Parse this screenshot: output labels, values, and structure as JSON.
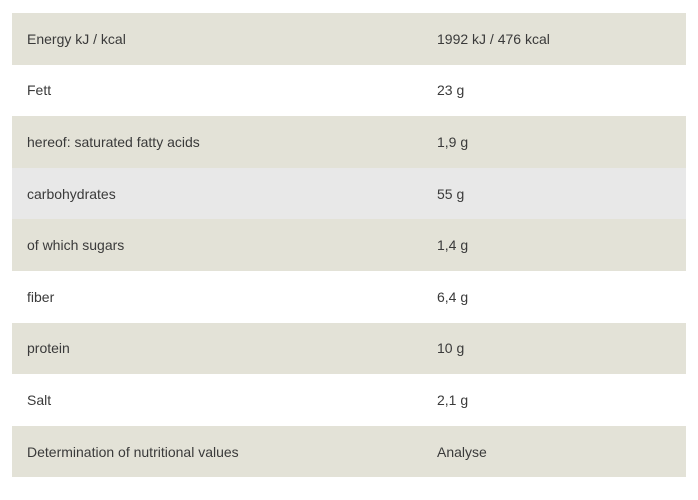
{
  "nutrition": {
    "rows": [
      {
        "label": "Energy kJ / kcal",
        "value": "1992 kJ / 476 kcal"
      },
      {
        "label": "Fett",
        "value": "23 g"
      },
      {
        "label": "hereof: saturated fatty acids",
        "value": "1,9 g"
      },
      {
        "label": "carbohydrates",
        "value": "55 g"
      },
      {
        "label": "of which sugars",
        "value": "1,4 g"
      },
      {
        "label": "fiber",
        "value": "6,4 g"
      },
      {
        "label": "protein",
        "value": "10 g"
      },
      {
        "label": "Salt",
        "value": "2,1 g"
      },
      {
        "label": "Determination of nutritional values",
        "value": "Analyse"
      }
    ]
  },
  "colors": {
    "row_tan": "#e3e2d7",
    "row_white": "#ffffff",
    "row_grey_hover": "#e8e8e8",
    "text": "#3a3a3a"
  }
}
